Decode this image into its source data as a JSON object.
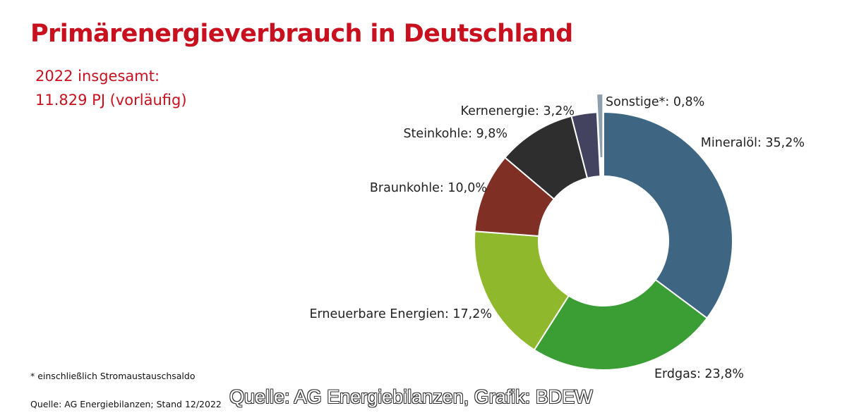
{
  "header": {
    "title": "Primärenergieverbrauch in Deutschland",
    "subtitle_line1": "2022 insgesamt:",
    "subtitle_line2": "11.829 PJ (vorläufig)"
  },
  "chart_data": {
    "type": "pie",
    "variant": "donut",
    "title": "Primärenergieverbrauch in Deutschland",
    "unit": "%",
    "slices": [
      {
        "name": "Mineralöl",
        "value": 35.2,
        "label": "Mineralöl: 35,2%",
        "color": "#3e6683"
      },
      {
        "name": "Erdgas",
        "value": 23.8,
        "label": "Erdgas: 23,8%",
        "color": "#3a9e35"
      },
      {
        "name": "Erneuerbare Energien",
        "value": 17.2,
        "label": "Erneuerbare Energien: 17,2%",
        "color": "#8fb82c"
      },
      {
        "name": "Braunkohle",
        "value": 10.0,
        "label": "Braunkohle: 10,0%",
        "color": "#7f2f24"
      },
      {
        "name": "Steinkohle",
        "value": 9.8,
        "label": "Steinkohle: 9,8%",
        "color": "#2e2e2e"
      },
      {
        "name": "Kernenergie",
        "value": 3.2,
        "label": "Kernenergie: 3,2%",
        "color": "#434360"
      },
      {
        "name": "Sonstige*",
        "value": 0.8,
        "label": "Sonstige*: 0,8%",
        "color": "#8ea0ab"
      }
    ]
  },
  "footer": {
    "footnote": "* einschließlich Stromaustauschsaldo",
    "source": "Quelle: AG Energiebilanzen; Stand 12/2022",
    "credit": "Quelle: AG Energiebilanzen, Grafik: BDEW"
  }
}
